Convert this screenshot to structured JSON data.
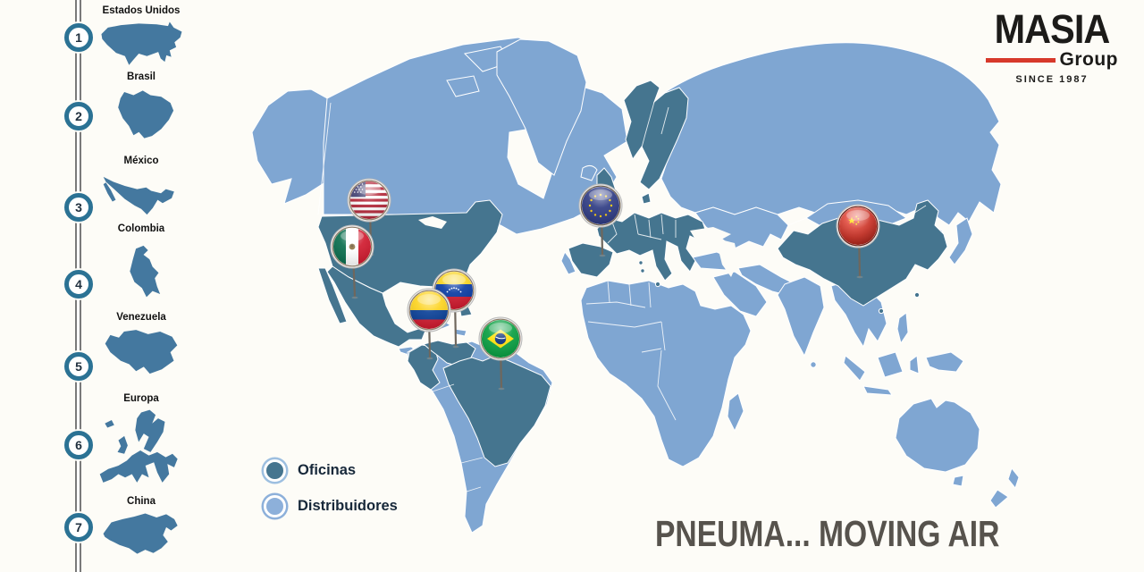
{
  "logo": {
    "title": "MASIA",
    "subtitle": "Group",
    "since": "SINCE 1987"
  },
  "tagline": "PNEUMA... MOVING AIR",
  "legend": {
    "items": [
      {
        "label": "Oficinas",
        "type": "office"
      },
      {
        "label": "Distribuidores",
        "type": "distributor"
      }
    ]
  },
  "sidebar": {
    "items": [
      {
        "number": "1",
        "label": "Estados Unidos",
        "shape": "usa"
      },
      {
        "number": "2",
        "label": "Brasil",
        "shape": "brasil"
      },
      {
        "number": "3",
        "label": "México",
        "shape": "mexico"
      },
      {
        "number": "4",
        "label": "Colombia",
        "shape": "colombia"
      },
      {
        "number": "5",
        "label": "Venezuela",
        "shape": "venezuela"
      },
      {
        "number": "6",
        "label": "Europa",
        "shape": "europa"
      },
      {
        "number": "7",
        "label": "China",
        "shape": "china"
      }
    ]
  },
  "map": {
    "pins": [
      {
        "id": "usa",
        "country": "Estados Unidos",
        "marker": "oficina"
      },
      {
        "id": "mexico",
        "country": "México",
        "marker": "oficina"
      },
      {
        "id": "colombia",
        "country": "Colombia",
        "marker": "oficina"
      },
      {
        "id": "venezuela",
        "country": "Venezuela",
        "marker": "oficina"
      },
      {
        "id": "brasil",
        "country": "Brasil",
        "marker": "oficina"
      },
      {
        "id": "europa",
        "country": "Europa",
        "marker": "oficina"
      },
      {
        "id": "china",
        "country": "China",
        "marker": "oficina"
      }
    ]
  },
  "colors": {
    "office": "#45758f",
    "distributor": "#7fa6d2",
    "sidebar_shape": "#44789f",
    "ring": "#2b7294",
    "logo_red": "#d7392b",
    "tagline": "#57534d"
  }
}
